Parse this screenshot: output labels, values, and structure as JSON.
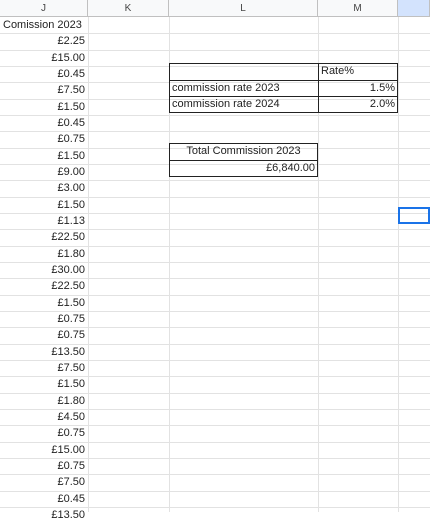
{
  "columns": [
    "J",
    "K",
    "L",
    "M"
  ],
  "col_j_header": "Comission 2023",
  "col_j_values": [
    "£2.25",
    "£15.00",
    "£0.45",
    "£7.50",
    "£1.50",
    "£0.45",
    "£0.75",
    "£1.50",
    "£9.00",
    "£3.00",
    "£1.50",
    "£1.13",
    "£22.50",
    "£1.80",
    "£30.00",
    "£22.50",
    "£1.50",
    "£0.75",
    "£0.75",
    "£13.50",
    "£7.50",
    "£1.50",
    "£1.80",
    "£4.50",
    "£0.75",
    "£15.00",
    "£0.75",
    "£7.50",
    "£0.45",
    "£13.50"
  ],
  "rate_table": {
    "header": "Rate%",
    "rows": [
      {
        "label": "commission rate 2023",
        "value": "1.5%"
      },
      {
        "label": "commission rate 2024",
        "value": "2.0%"
      }
    ]
  },
  "total": {
    "label": "Total Commission 2023",
    "value": "£6,840.00"
  }
}
